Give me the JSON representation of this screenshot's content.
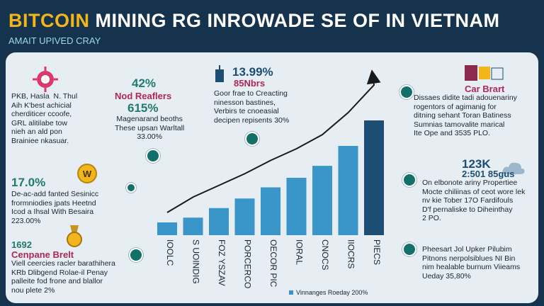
{
  "header": {
    "title_highlight": "BITCOIN",
    "title_rest": " MINING RG INROWADE SE OF IN VIETNAM",
    "subtitle": "AMAIT UPIVED CRAY"
  },
  "colors": {
    "accent": "#f2b51c",
    "bar": "#3a95c9",
    "bar_dark": "#1c4e74",
    "teal": "#136f6a",
    "magenta": "#b0265a"
  },
  "blocks": {
    "b1": {
      "text": "PKB, Hasla  N. Thul\nAih K'best achicial\ncherditicer ccoofe,\nGRL alitilabe tow\nnieh an ald pon\nBrainiee nkasuar."
    },
    "b2": {
      "value": "42%",
      "label": "Nod Reaflers",
      "value2": "615%",
      "text": "Magenarand beoths\nThese upsan Warltall\n33.00%"
    },
    "b3": {
      "value": "13.99%",
      "label": "85Nbrs",
      "text": "Goor frae to Creacting\nninesson bastines,\nVerbirs te cnoeasial\ndecipen repisents 30%"
    },
    "b4": {
      "label": "Car Brart",
      "text": "Dissaes didite tadi adouenariny\nrogentors of agimanig for\nditning sehant Toran Batiness\nSumnias tamovalite marical\nIte Ope and 3535 PLO."
    },
    "b5": {
      "value": "17.0%",
      "text": "De-ac-add fanted Sesinicc\nfrormniodies jpats Heetnd\nIcod a Ihsal With Besaira\n223.00%"
    },
    "b6": {
      "value": "123K",
      "value2": "2:501 85gus",
      "text": "On elbonote ariny Propertiee\nMocte chiliinas of ceot wore lek\nnv kie Tober 17O Fardifouls\nD'f pernaliske to Diheinthay\n2 PO."
    },
    "b7": {
      "value": "1692",
      "label": "Cenpane Brelt",
      "text": "Viell ceercies racler barathihera\nKRb Dlibgend Rolae-il Penay\npalleite fod frone and blallor\nnou plete 2%"
    },
    "b8": {
      "text": "Pheesart Jol Upker Pilubim\nPitnons nerpolsiblues NI Bin\nnim healable burnum Viieams\nUeday 35,80%"
    }
  },
  "icons": [
    "sun-gear-icon",
    "mining-rig-icon",
    "server-icon",
    "coin-icon",
    "medal-icon",
    "cloud-icon"
  ],
  "chart_data": {
    "type": "bar",
    "categories": [
      "IOOLC",
      "S UOINDIG",
      "FOZ YSZAV",
      "PORCERCO",
      "OECOR PIC",
      "IORAL",
      "CNOCS",
      "IIOCRS",
      "PIECS"
    ],
    "values": [
      1.6,
      2.2,
      3.4,
      4.6,
      6.0,
      7.2,
      8.7,
      11.2,
      14.4
    ],
    "ylim": [
      0,
      16
    ],
    "grid": false,
    "trend": "upward arrow",
    "legend": {
      "label": "Vinnanges Roeday 200%",
      "position": "bottom-right"
    }
  }
}
